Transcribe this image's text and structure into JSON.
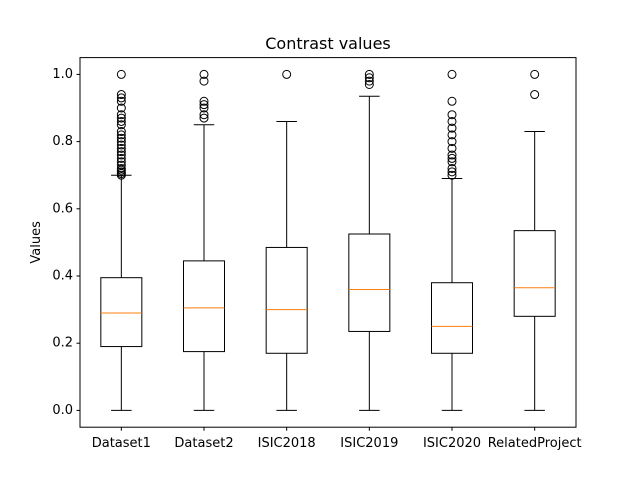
{
  "chart_data": {
    "type": "boxplot",
    "title": "Contrast values",
    "xlabel": "",
    "ylabel": "Values",
    "ylim": [
      -0.05,
      1.05
    ],
    "yticks": [
      0.0,
      0.2,
      0.4,
      0.6,
      0.8,
      1.0
    ],
    "ytick_labels": [
      "0.0",
      "0.2",
      "0.4",
      "0.6",
      "0.8",
      "1.0"
    ],
    "grid": false,
    "colors": {
      "box": "#000000",
      "median": "#ff7f0e"
    },
    "categories": [
      "Dataset1",
      "Dataset2",
      "ISIC2018",
      "ISIC2019",
      "ISIC2020",
      "RelatedProject"
    ],
    "boxes": [
      {
        "label": "Dataset1",
        "whisker_low": 0.0,
        "q1": 0.19,
        "median": 0.29,
        "q3": 0.395,
        "whisker_high": 0.7,
        "outliers": [
          0.7,
          0.705,
          0.71,
          0.715,
          0.72,
          0.73,
          0.74,
          0.75,
          0.76,
          0.77,
          0.78,
          0.79,
          0.8,
          0.81,
          0.82,
          0.83,
          0.85,
          0.86,
          0.87,
          0.88,
          0.9,
          0.92,
          0.93,
          0.94,
          1.0
        ]
      },
      {
        "label": "Dataset2",
        "whisker_low": 0.0,
        "q1": 0.175,
        "median": 0.305,
        "q3": 0.445,
        "whisker_high": 0.85,
        "outliers": [
          0.87,
          0.88,
          0.9,
          0.91,
          0.92,
          0.98,
          1.0
        ]
      },
      {
        "label": "ISIC2018",
        "whisker_low": 0.0,
        "q1": 0.17,
        "median": 0.3,
        "q3": 0.485,
        "whisker_high": 0.86,
        "outliers": [
          1.0
        ]
      },
      {
        "label": "ISIC2019",
        "whisker_low": 0.0,
        "q1": 0.235,
        "median": 0.36,
        "q3": 0.525,
        "whisker_high": 0.935,
        "outliers": [
          0.97,
          0.98,
          0.99,
          1.0
        ]
      },
      {
        "label": "ISIC2020",
        "whisker_low": 0.0,
        "q1": 0.17,
        "median": 0.25,
        "q3": 0.38,
        "whisker_high": 0.69,
        "outliers": [
          0.7,
          0.71,
          0.72,
          0.74,
          0.75,
          0.76,
          0.78,
          0.8,
          0.82,
          0.84,
          0.86,
          0.88,
          0.92,
          1.0
        ]
      },
      {
        "label": "RelatedProject",
        "whisker_low": 0.0,
        "q1": 0.28,
        "median": 0.365,
        "q3": 0.535,
        "whisker_high": 0.83,
        "outliers": [
          0.94,
          1.0
        ]
      }
    ]
  }
}
